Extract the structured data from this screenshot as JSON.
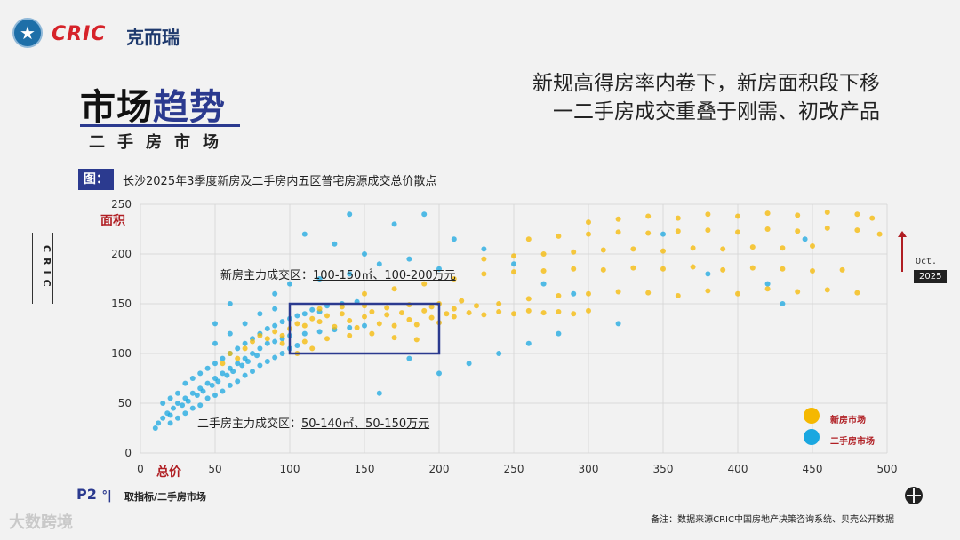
{
  "header": {
    "brand_en": "CRIC",
    "brand_cn": "克而瑞",
    "title_plain": "市场",
    "title_highlight": "趋势",
    "subtitle": "二手房市场",
    "headline_line1": "新规高得房率内卷下，新房面积段下移",
    "headline_line2": "一二手房成交重叠于刚需、初改产品"
  },
  "figure": {
    "tag": "图：",
    "caption": "长沙2025年3季度新房及二手房内五区普宅房源成交总价散点",
    "side_mark": "CRIC",
    "annotation_new_prefix": "新房主力成交区：",
    "annotation_new_range": "100-150㎡、100-200万元",
    "annotation_second_prefix": "二手房主力成交区：",
    "annotation_second_range": "50-140㎡、50-150万元",
    "oct_label": "Oct.",
    "year_label": "2025"
  },
  "colors": {
    "new": "#f5b800",
    "second": "#1aa7e0",
    "box": "#2b3a8f",
    "accent": "#b01e23"
  },
  "chart_data": {
    "type": "scatter",
    "xlabel": "总价",
    "ylabel": "面积",
    "xlim": [
      0,
      500
    ],
    "ylim": [
      0,
      250
    ],
    "x_ticks": [
      0,
      50,
      100,
      150,
      200,
      250,
      300,
      350,
      400,
      450,
      500
    ],
    "y_ticks": [
      0,
      50,
      100,
      150,
      200,
      250
    ],
    "grid": true,
    "legend_position": "bottom-right",
    "legend": [
      "新房市场",
      "二手房市场"
    ],
    "highlight_box": {
      "x": [
        100,
        200
      ],
      "y": [
        100,
        150
      ]
    },
    "series": [
      {
        "name": "新房市场",
        "points": [
          [
            80,
            118
          ],
          [
            90,
            122
          ],
          [
            100,
            125
          ],
          [
            105,
            130
          ],
          [
            110,
            128
          ],
          [
            115,
            135
          ],
          [
            120,
            132
          ],
          [
            125,
            138
          ],
          [
            130,
            127
          ],
          [
            135,
            140
          ],
          [
            140,
            133
          ],
          [
            145,
            126
          ],
          [
            150,
            137
          ],
          [
            155,
            142
          ],
          [
            160,
            130
          ],
          [
            165,
            139
          ],
          [
            170,
            128
          ],
          [
            175,
            141
          ],
          [
            180,
            134
          ],
          [
            185,
            129
          ],
          [
            190,
            143
          ],
          [
            195,
            136
          ],
          [
            200,
            131
          ],
          [
            205,
            140
          ],
          [
            210,
            137
          ],
          [
            220,
            141
          ],
          [
            230,
            139
          ],
          [
            240,
            142
          ],
          [
            250,
            140
          ],
          [
            260,
            143
          ],
          [
            270,
            141
          ],
          [
            280,
            142
          ],
          [
            290,
            140
          ],
          [
            300,
            143
          ],
          [
            95,
            110
          ],
          [
            110,
            112
          ],
          [
            125,
            115
          ],
          [
            140,
            118
          ],
          [
            155,
            120
          ],
          [
            170,
            116
          ],
          [
            185,
            114
          ],
          [
            120,
            145
          ],
          [
            135,
            147
          ],
          [
            150,
            148
          ],
          [
            165,
            146
          ],
          [
            180,
            149
          ],
          [
            195,
            147
          ],
          [
            210,
            145
          ],
          [
            225,
            148
          ],
          [
            150,
            160
          ],
          [
            170,
            165
          ],
          [
            190,
            170
          ],
          [
            210,
            175
          ],
          [
            230,
            180
          ],
          [
            250,
            182
          ],
          [
            270,
            183
          ],
          [
            290,
            185
          ],
          [
            310,
            184
          ],
          [
            330,
            186
          ],
          [
            350,
            185
          ],
          [
            370,
            187
          ],
          [
            390,
            184
          ],
          [
            410,
            186
          ],
          [
            430,
            185
          ],
          [
            450,
            183
          ],
          [
            470,
            184
          ],
          [
            230,
            195
          ],
          [
            250,
            198
          ],
          [
            270,
            200
          ],
          [
            290,
            202
          ],
          [
            310,
            204
          ],
          [
            330,
            205
          ],
          [
            350,
            203
          ],
          [
            370,
            206
          ],
          [
            390,
            205
          ],
          [
            410,
            207
          ],
          [
            430,
            206
          ],
          [
            450,
            208
          ],
          [
            260,
            215
          ],
          [
            280,
            218
          ],
          [
            300,
            220
          ],
          [
            320,
            222
          ],
          [
            340,
            221
          ],
          [
            360,
            223
          ],
          [
            380,
            224
          ],
          [
            400,
            222
          ],
          [
            420,
            225
          ],
          [
            440,
            223
          ],
          [
            460,
            226
          ],
          [
            480,
            224
          ],
          [
            495,
            220
          ],
          [
            300,
            232
          ],
          [
            320,
            235
          ],
          [
            340,
            238
          ],
          [
            360,
            236
          ],
          [
            380,
            240
          ],
          [
            400,
            238
          ],
          [
            420,
            241
          ],
          [
            440,
            239
          ],
          [
            460,
            242
          ],
          [
            480,
            240
          ],
          [
            490,
            236
          ],
          [
            60,
            100
          ],
          [
            70,
            105
          ],
          [
            75,
            112
          ],
          [
            85,
            115
          ],
          [
            95,
            118
          ],
          [
            65,
            95
          ],
          [
            55,
            90
          ],
          [
            105,
            100
          ],
          [
            115,
            105
          ],
          [
            200,
            150
          ],
          [
            215,
            153
          ],
          [
            240,
            150
          ],
          [
            260,
            155
          ],
          [
            280,
            158
          ],
          [
            300,
            160
          ],
          [
            320,
            162
          ],
          [
            340,
            161
          ],
          [
            360,
            158
          ],
          [
            380,
            163
          ],
          [
            400,
            160
          ],
          [
            420,
            165
          ],
          [
            440,
            162
          ],
          [
            460,
            164
          ],
          [
            480,
            161
          ]
        ]
      },
      {
        "name": "二手房市场",
        "points": [
          [
            10,
            25
          ],
          [
            12,
            30
          ],
          [
            15,
            35
          ],
          [
            18,
            40
          ],
          [
            20,
            38
          ],
          [
            22,
            45
          ],
          [
            25,
            50
          ],
          [
            28,
            48
          ],
          [
            30,
            55
          ],
          [
            32,
            52
          ],
          [
            35,
            60
          ],
          [
            38,
            58
          ],
          [
            40,
            65
          ],
          [
            42,
            62
          ],
          [
            45,
            70
          ],
          [
            48,
            68
          ],
          [
            50,
            75
          ],
          [
            52,
            72
          ],
          [
            55,
            80
          ],
          [
            58,
            78
          ],
          [
            60,
            85
          ],
          [
            62,
            82
          ],
          [
            65,
            90
          ],
          [
            68,
            88
          ],
          [
            70,
            95
          ],
          [
            72,
            92
          ],
          [
            75,
            100
          ],
          [
            78,
            98
          ],
          [
            80,
            105
          ],
          [
            85,
            110
          ],
          [
            90,
            112
          ],
          [
            95,
            115
          ],
          [
            100,
            118
          ],
          [
            110,
            120
          ],
          [
            120,
            122
          ],
          [
            130,
            124
          ],
          [
            140,
            126
          ],
          [
            150,
            128
          ],
          [
            20,
            30
          ],
          [
            25,
            35
          ],
          [
            30,
            40
          ],
          [
            35,
            45
          ],
          [
            40,
            48
          ],
          [
            45,
            55
          ],
          [
            50,
            58
          ],
          [
            55,
            62
          ],
          [
            60,
            68
          ],
          [
            65,
            72
          ],
          [
            70,
            78
          ],
          [
            75,
            82
          ],
          [
            80,
            88
          ],
          [
            85,
            92
          ],
          [
            90,
            96
          ],
          [
            95,
            100
          ],
          [
            100,
            105
          ],
          [
            105,
            108
          ],
          [
            30,
            70
          ],
          [
            40,
            80
          ],
          [
            50,
            90
          ],
          [
            60,
            100
          ],
          [
            70,
            110
          ],
          [
            80,
            120
          ],
          [
            90,
            128
          ],
          [
            100,
            135
          ],
          [
            110,
            140
          ],
          [
            120,
            142
          ],
          [
            50,
            110
          ],
          [
            60,
            120
          ],
          [
            70,
            130
          ],
          [
            80,
            140
          ],
          [
            90,
            145
          ],
          [
            15,
            50
          ],
          [
            20,
            55
          ],
          [
            25,
            60
          ],
          [
            35,
            75
          ],
          [
            45,
            85
          ],
          [
            55,
            95
          ],
          [
            65,
            105
          ],
          [
            75,
            115
          ],
          [
            85,
            125
          ],
          [
            95,
            132
          ],
          [
            105,
            138
          ],
          [
            115,
            144
          ],
          [
            125,
            148
          ],
          [
            135,
            150
          ],
          [
            145,
            152
          ],
          [
            100,
            170
          ],
          [
            120,
            175
          ],
          [
            140,
            180
          ],
          [
            160,
            190
          ],
          [
            180,
            195
          ],
          [
            200,
            185
          ],
          [
            150,
            200
          ],
          [
            130,
            210
          ],
          [
            110,
            220
          ],
          [
            170,
            230
          ],
          [
            190,
            240
          ],
          [
            140,
            240
          ],
          [
            210,
            215
          ],
          [
            230,
            205
          ],
          [
            250,
            190
          ],
          [
            270,
            170
          ],
          [
            290,
            160
          ],
          [
            320,
            130
          ],
          [
            350,
            220
          ],
          [
            380,
            180
          ],
          [
            420,
            170
          ],
          [
            430,
            150
          ],
          [
            445,
            215
          ],
          [
            60,
            150
          ],
          [
            50,
            130
          ],
          [
            90,
            160
          ],
          [
            160,
            60
          ],
          [
            180,
            95
          ],
          [
            200,
            80
          ],
          [
            220,
            90
          ],
          [
            240,
            100
          ],
          [
            260,
            110
          ],
          [
            280,
            120
          ]
        ]
      }
    ]
  },
  "footer": {
    "page": "P2",
    "page_divider": "°|",
    "page_note": "取指标/二手房市场",
    "source": "备注：数据来源CRIC中国房地产决策咨询系统、贝壳公开数据",
    "watermark": "大数跨境"
  }
}
